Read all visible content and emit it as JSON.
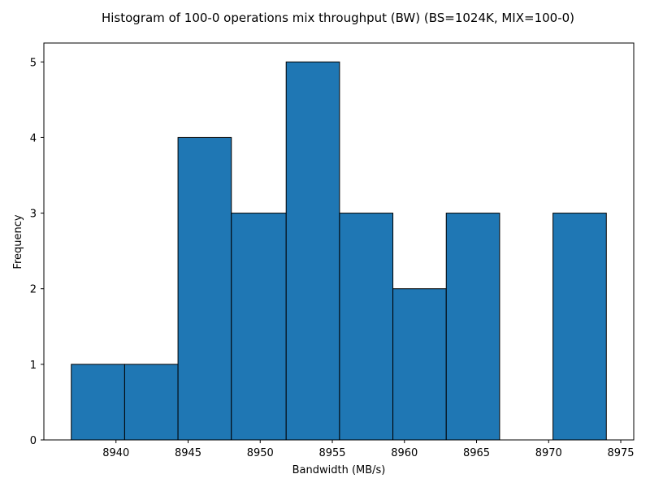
{
  "chart_data": {
    "type": "bar",
    "title": "Histogram of 100-0 operations mix throughput (BW) (BS=1024K, MIX=100-0)",
    "xlabel": "Bandwidth (MB/s)",
    "ylabel": "Frequency",
    "bin_edges": [
      8936.9,
      8940.6,
      8944.3,
      8948.0,
      8951.8,
      8955.5,
      8959.2,
      8962.9,
      8966.6,
      8970.3,
      8974.0
    ],
    "values": [
      1,
      1,
      4,
      3,
      5,
      3,
      2,
      3,
      0,
      3
    ],
    "xlim": [
      8935.0,
      8975.9
    ],
    "ylim": [
      0,
      5.25
    ],
    "xticks": [
      8940,
      8945,
      8950,
      8955,
      8960,
      8965,
      8970,
      8975
    ],
    "yticks": [
      0,
      1,
      2,
      3,
      4,
      5
    ],
    "bar_color": "#1f77b4",
    "edge_color": "#000000",
    "grid": false,
    "legend": null
  }
}
